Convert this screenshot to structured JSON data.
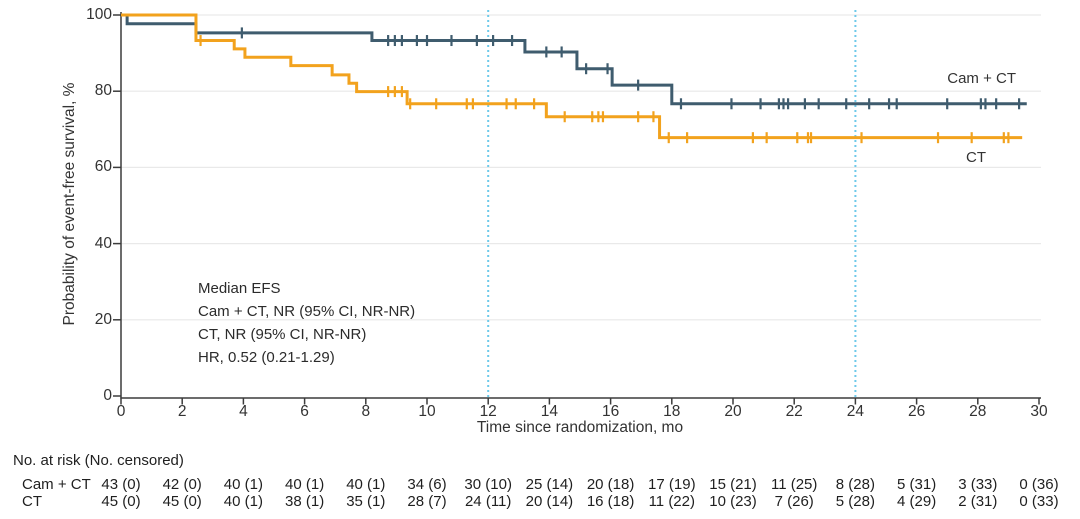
{
  "chart_data": {
    "type": "line",
    "subtype": "kaplan-meier-step",
    "title": "",
    "xlabel": "Time since randomization, mo",
    "ylabel": "Probability of event-free survival, %",
    "xlim": [
      0,
      30
    ],
    "ylim": [
      0,
      100
    ],
    "xticks": [
      0,
      2,
      4,
      6,
      8,
      10,
      12,
      14,
      16,
      18,
      20,
      22,
      24,
      26,
      28,
      30
    ],
    "yticks": [
      0,
      20,
      40,
      60,
      80,
      100
    ],
    "grid": "horizontal",
    "grid_color": "#e9e9e9",
    "axis_color": "#3c3c3c",
    "reference_lines_x": [
      12,
      24
    ],
    "reference_line_color": "#6ec9ea",
    "series": [
      {
        "name": "Cam + CT",
        "color": "#3f5c6e",
        "steps": [
          [
            0,
            100
          ],
          [
            0.2,
            97.7
          ],
          [
            2.45,
            95.3
          ],
          [
            8.2,
            93.3
          ],
          [
            13.2,
            90.3
          ],
          [
            14.9,
            85.9
          ],
          [
            16.05,
            81.6
          ],
          [
            18.0,
            76.7
          ]
        ],
        "end_x": 29.6,
        "censors": [
          [
            3.95,
            95.3
          ],
          [
            8.73,
            93.3
          ],
          [
            8.95,
            93.3
          ],
          [
            9.18,
            93.3
          ],
          [
            9.67,
            93.3
          ],
          [
            10.0,
            93.3
          ],
          [
            10.8,
            93.3
          ],
          [
            11.63,
            93.3
          ],
          [
            12.16,
            93.3
          ],
          [
            12.78,
            93.3
          ],
          [
            13.9,
            90.3
          ],
          [
            14.4,
            90.3
          ],
          [
            15.2,
            85.9
          ],
          [
            15.9,
            85.9
          ],
          [
            16.9,
            81.6
          ],
          [
            18.3,
            76.7
          ],
          [
            19.95,
            76.7
          ],
          [
            20.9,
            76.7
          ],
          [
            21.5,
            76.7
          ],
          [
            21.65,
            76.7
          ],
          [
            21.8,
            76.7
          ],
          [
            22.35,
            76.7
          ],
          [
            22.8,
            76.7
          ],
          [
            23.7,
            76.7
          ],
          [
            24.45,
            76.7
          ],
          [
            25.1,
            76.7
          ],
          [
            25.35,
            76.7
          ],
          [
            27.0,
            76.7
          ],
          [
            28.1,
            76.7
          ],
          [
            28.25,
            76.7
          ],
          [
            28.6,
            76.7
          ],
          [
            29.35,
            76.7
          ]
        ]
      },
      {
        "name": "CT",
        "color": "#f2a21d",
        "steps": [
          [
            0,
            100
          ],
          [
            2.45,
            93.3
          ],
          [
            3.7,
            91.1
          ],
          [
            4.05,
            88.9
          ],
          [
            5.55,
            86.7
          ],
          [
            6.9,
            84.3
          ],
          [
            7.45,
            82.1
          ],
          [
            7.7,
            79.9
          ],
          [
            9.35,
            76.7
          ],
          [
            13.9,
            73.3
          ],
          [
            17.6,
            67.8
          ]
        ],
        "end_x": 29.45,
        "censors": [
          [
            2.6,
            93.3
          ],
          [
            8.73,
            79.9
          ],
          [
            8.95,
            79.9
          ],
          [
            9.18,
            79.9
          ],
          [
            9.45,
            76.7
          ],
          [
            10.3,
            76.7
          ],
          [
            11.3,
            76.7
          ],
          [
            11.5,
            76.7
          ],
          [
            12.6,
            76.7
          ],
          [
            12.9,
            76.7
          ],
          [
            13.5,
            76.7
          ],
          [
            14.5,
            73.3
          ],
          [
            15.4,
            73.3
          ],
          [
            15.6,
            73.3
          ],
          [
            15.75,
            73.3
          ],
          [
            16.9,
            73.3
          ],
          [
            17.4,
            73.3
          ],
          [
            17.9,
            67.8
          ],
          [
            18.5,
            67.8
          ],
          [
            20.65,
            67.8
          ],
          [
            21.1,
            67.8
          ],
          [
            22.1,
            67.8
          ],
          [
            22.45,
            67.8
          ],
          [
            22.55,
            67.8
          ],
          [
            24.2,
            67.8
          ],
          [
            26.7,
            67.8
          ],
          [
            27.8,
            67.8
          ],
          [
            28.85,
            67.8
          ],
          [
            29.0,
            67.8
          ]
        ]
      }
    ],
    "curve_labels": [
      {
        "text": "Cam + CT"
      },
      {
        "text": "CT"
      }
    ],
    "annotation_lines": [
      "Median EFS",
      "Cam + CT, NR (95% CI, NR-NR)",
      "CT, NR (95% CI, NR-NR)",
      "HR, 0.52 (0.21-1.29)"
    ]
  },
  "risk_table": {
    "title": "No. at risk (No. censored)",
    "rows": [
      {
        "label": "Cam + CT",
        "values": [
          "43 (0)",
          "42 (0)",
          "40 (1)",
          "40 (1)",
          "40 (1)",
          "34 (6)",
          "30 (10)",
          "25 (14)",
          "20 (18)",
          "17 (19)",
          "15 (21)",
          "11 (25)",
          "8 (28)",
          "5 (31)",
          "3 (33)",
          "0 (36)"
        ]
      },
      {
        "label": "CT",
        "values": [
          "45 (0)",
          "45 (0)",
          "40 (1)",
          "38 (1)",
          "35 (1)",
          "28 (7)",
          "24 (11)",
          "20 (14)",
          "16 (18)",
          "11 (22)",
          "10 (23)",
          "7 (26)",
          "5 (28)",
          "4 (29)",
          "2 (31)",
          "0 (33)"
        ]
      }
    ]
  }
}
